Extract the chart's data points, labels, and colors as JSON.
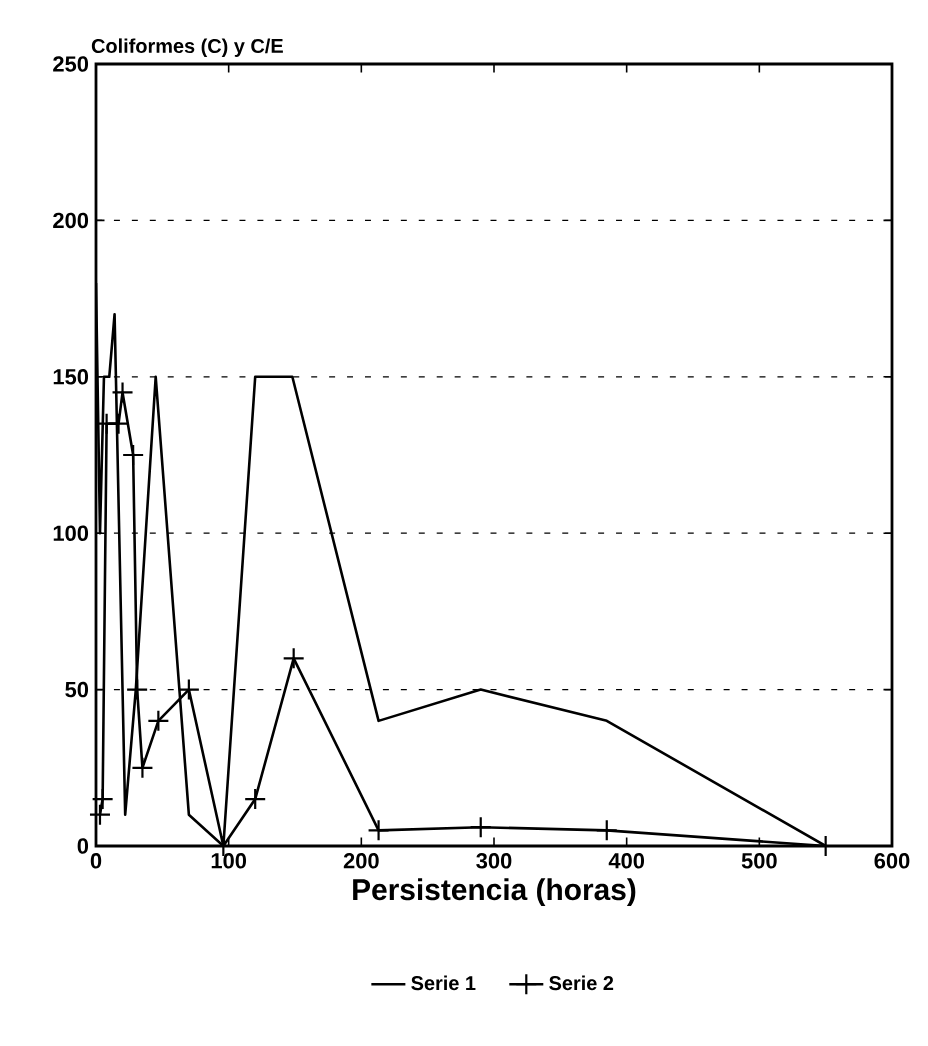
{
  "chart_data": {
    "type": "line",
    "ylabel": "Coliformes (C) y C/E",
    "xlabel": "Persistencia (horas)",
    "xlim": [
      0,
      600
    ],
    "xticks": [
      0,
      100,
      200,
      300,
      400,
      500,
      600
    ],
    "ylim": [
      0,
      250
    ],
    "yticks": [
      0,
      50,
      100,
      150,
      200,
      250
    ],
    "grid": "y",
    "legend": "bottom",
    "series": [
      {
        "name": "Serie 1",
        "color": "#000000",
        "x": [
          0,
          3,
          6,
          10,
          14,
          22,
          30,
          45,
          70,
          96,
          120,
          148,
          213,
          290,
          385,
          550
        ],
        "values": [
          180,
          100,
          150,
          150,
          170,
          10,
          50,
          150,
          10,
          0,
          150,
          150,
          40,
          50,
          40,
          0
        ]
      },
      {
        "name": "Serie 2",
        "color": "#000000",
        "marker": "cross",
        "x": [
          3,
          5,
          8,
          17,
          20,
          28,
          31,
          35,
          47,
          70,
          96,
          120,
          149,
          213,
          290,
          385,
          550
        ],
        "values": [
          10,
          15,
          135,
          135,
          145,
          125,
          50,
          25,
          40,
          50,
          0,
          15,
          60,
          5,
          6,
          5,
          0
        ]
      }
    ]
  }
}
